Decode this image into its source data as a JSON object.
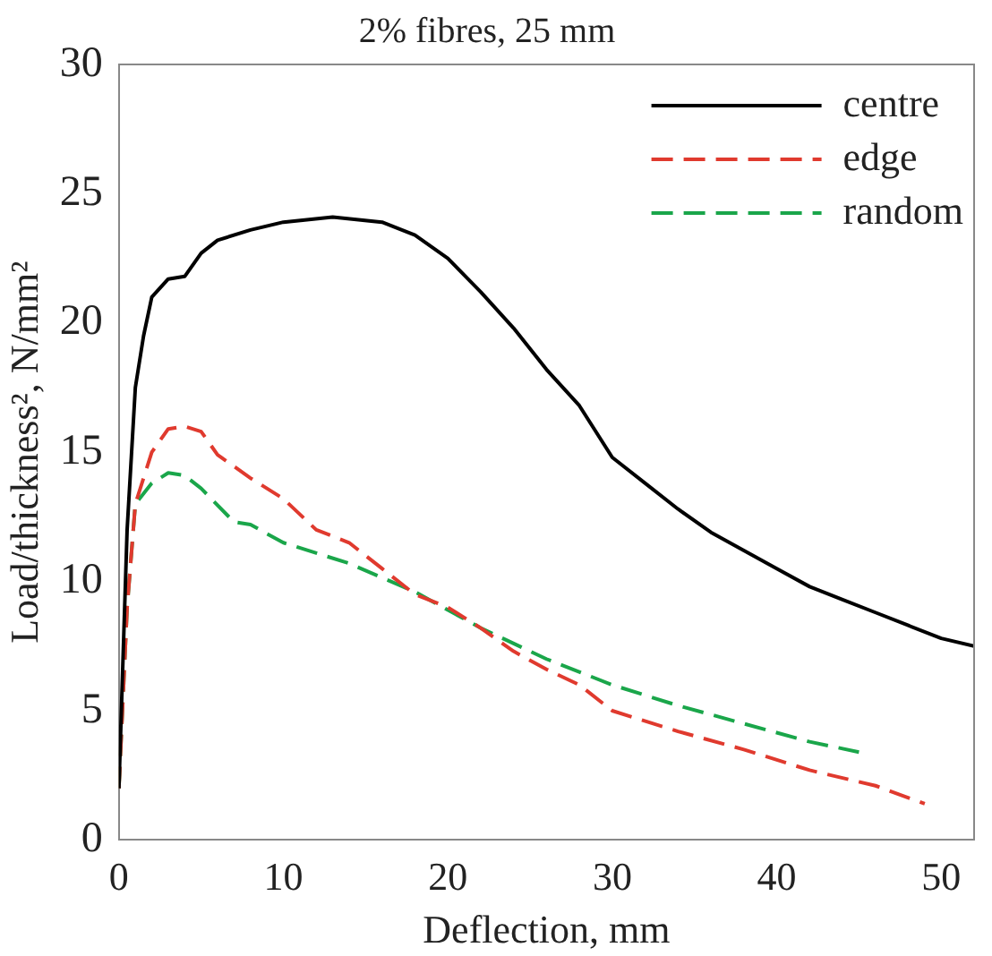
{
  "chart_data": {
    "type": "line",
    "title": "2% fibres, 25 mm",
    "xlabel": "Deflection, mm",
    "ylabel": "Load/thickness², N/mm²",
    "xlim": [
      0,
      52
    ],
    "xticks": [
      0,
      10,
      20,
      30,
      40,
      50
    ],
    "ylim": [
      0,
      30
    ],
    "yticks": [
      0,
      5,
      10,
      15,
      20,
      25,
      30
    ],
    "grid": false,
    "legend": "top right",
    "marker": "none",
    "series": [
      {
        "name": "centre",
        "color": "#000000",
        "line_style": "solid",
        "x": [
          0,
          0.5,
          1,
          1.5,
          2,
          3,
          4,
          5,
          6,
          8,
          10,
          13,
          16,
          18,
          20,
          22,
          24,
          26,
          28,
          30,
          32,
          34,
          36,
          38,
          40,
          42,
          44,
          46,
          48,
          50,
          52
        ],
        "values": [
          2,
          12,
          17.5,
          19.5,
          21,
          21.7,
          21.8,
          22.7,
          23.2,
          23.6,
          23.9,
          24.1,
          23.9,
          23.4,
          22.5,
          21.2,
          19.8,
          18.2,
          16.8,
          14.8,
          13.8,
          12.8,
          11.9,
          11.2,
          10.5,
          9.8,
          9.3,
          8.8,
          8.3,
          7.8,
          7.5
        ]
      },
      {
        "name": "edge",
        "color": "#e03a2e",
        "line_style": "dashed",
        "x": [
          0,
          0.5,
          1,
          2,
          3,
          4,
          5,
          6,
          8,
          10,
          12,
          14,
          16,
          18,
          20,
          22,
          24,
          26,
          28,
          30,
          34,
          38,
          42,
          46,
          49
        ],
        "values": [
          2,
          9,
          13,
          15,
          15.9,
          16,
          15.8,
          14.9,
          14,
          13.2,
          12,
          11.5,
          10.5,
          9.5,
          9,
          8.2,
          7.3,
          6.6,
          6,
          5,
          4.2,
          3.5,
          2.7,
          2.1,
          1.4
        ]
      },
      {
        "name": "random",
        "color": "#1aa64a",
        "line_style": "dashed",
        "x": [
          0,
          0.5,
          1,
          2,
          3,
          4,
          5,
          7,
          8,
          10,
          14,
          18,
          22,
          26,
          30,
          34,
          38,
          42,
          45
        ],
        "values": [
          2,
          9,
          13,
          13.8,
          14.2,
          14.1,
          13.6,
          12.3,
          12.2,
          11.5,
          10.7,
          9.6,
          8.2,
          7,
          6,
          5.2,
          4.5,
          3.8,
          3.4
        ]
      }
    ]
  }
}
